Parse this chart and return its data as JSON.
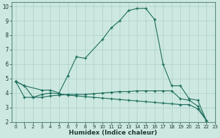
{
  "xlabel": "Humidex (Indice chaleur)",
  "bg_color": "#cce8e0",
  "grid_color": "#aacfc8",
  "line_color": "#1a6b5a",
  "xlim": [
    -0.5,
    23
  ],
  "ylim": [
    2,
    10.3
  ],
  "xticks": [
    0,
    1,
    2,
    3,
    4,
    5,
    6,
    7,
    8,
    9,
    10,
    11,
    12,
    13,
    14,
    15,
    16,
    17,
    18,
    19,
    20,
    21,
    22,
    23
  ],
  "yticks": [
    2,
    3,
    4,
    5,
    6,
    7,
    8,
    9,
    10
  ],
  "line1_x": [
    0,
    1,
    3,
    4,
    5,
    6,
    7,
    8,
    10,
    11,
    12,
    13,
    14,
    15,
    16,
    17,
    18,
    19,
    20,
    21,
    22
  ],
  "line1_y": [
    4.8,
    4.5,
    4.2,
    4.2,
    4.0,
    5.2,
    6.5,
    6.4,
    7.7,
    8.5,
    9.0,
    9.7,
    9.85,
    9.85,
    9.1,
    6.0,
    4.5,
    4.5,
    3.6,
    3.5,
    2.1
  ],
  "line2_x": [
    0,
    1,
    2,
    3,
    4,
    5,
    6,
    7,
    8,
    9,
    10,
    11,
    12,
    13,
    14,
    15,
    16,
    17,
    18,
    19,
    20,
    21,
    22
  ],
  "line2_y": [
    4.8,
    3.7,
    3.7,
    3.7,
    3.8,
    3.85,
    3.9,
    3.9,
    3.9,
    3.95,
    4.0,
    4.05,
    4.1,
    4.1,
    4.15,
    4.15,
    4.15,
    4.15,
    4.15,
    3.6,
    3.5,
    3.1,
    2.1
  ],
  "line3_x": [
    0,
    1,
    2,
    3,
    4,
    5,
    6,
    7,
    8,
    9,
    10,
    11,
    12,
    13,
    14,
    15,
    16,
    17,
    18,
    19,
    20,
    21,
    22
  ],
  "line3_y": [
    4.8,
    4.5,
    3.7,
    3.9,
    4.0,
    3.95,
    3.85,
    3.8,
    3.75,
    3.7,
    3.65,
    3.6,
    3.55,
    3.5,
    3.45,
    3.4,
    3.35,
    3.3,
    3.25,
    3.2,
    3.2,
    2.9,
    2.1
  ]
}
